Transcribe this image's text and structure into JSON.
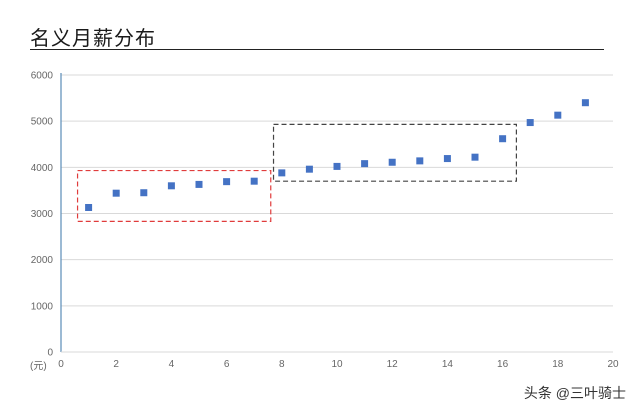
{
  "title": "名义月薪分布",
  "watermark": "头条 @三叶骑士",
  "colors": {
    "marker": "#4472C4",
    "red_box": "#E03C3C",
    "dark_box": "#444444",
    "grid": "#D9D9D9",
    "axis": "#5B8DB8"
  },
  "chart_data": {
    "type": "scatter",
    "title": "名义月薪分布",
    "xlabel": "",
    "ylabel": "",
    "y_unit_label": "(元)",
    "xlim": [
      0,
      20
    ],
    "ylim": [
      0,
      6000
    ],
    "x_ticks": [
      0,
      2,
      4,
      6,
      8,
      10,
      12,
      14,
      16,
      18,
      20
    ],
    "y_ticks": [
      0,
      1000,
      2000,
      3000,
      4000,
      5000,
      6000
    ],
    "grid": "horizontal",
    "series": [
      {
        "x": [
          1,
          2,
          3,
          4,
          5,
          6,
          7,
          8,
          9,
          10,
          11,
          12,
          13,
          14,
          15,
          16,
          17,
          18,
          19
        ],
        "y": [
          3130,
          3440,
          3450,
          3600,
          3630,
          3690,
          3700,
          3880,
          3960,
          4020,
          4080,
          4110,
          4140,
          4190,
          4220,
          4620,
          4970,
          5130,
          5400
        ]
      }
    ],
    "annotations": [
      {
        "type": "dashed-box",
        "color": "red",
        "x_range": [
          0.6,
          7.6
        ],
        "y_range": [
          2830,
          3930
        ]
      },
      {
        "type": "dashed-box",
        "color": "dark-gray",
        "x_range": [
          7.7,
          16.5
        ],
        "y_range": [
          3700,
          4930
        ]
      }
    ]
  }
}
